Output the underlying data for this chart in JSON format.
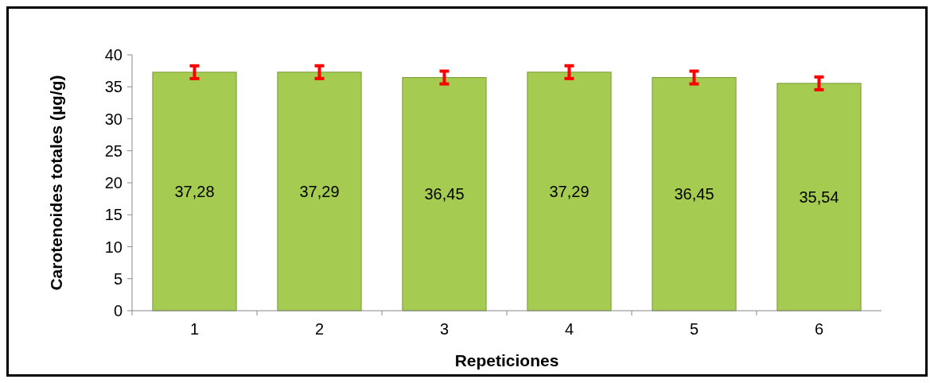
{
  "chart_data": {
    "type": "bar",
    "xlabel": "Repeticiones",
    "ylabel": "Carotenoides totales (µg/g)",
    "categories": [
      "1",
      "2",
      "3",
      "4",
      "5",
      "6"
    ],
    "values": [
      37.28,
      37.29,
      36.45,
      37.29,
      36.45,
      35.54
    ],
    "value_labels": [
      "37,28",
      "37,29",
      "36,45",
      "37,29",
      "36,45",
      "35,54"
    ],
    "errors": [
      1,
      1,
      1,
      1,
      1,
      1
    ],
    "color": "#a5cc50",
    "ylim": [
      0,
      40
    ],
    "yticks": [
      0,
      5,
      10,
      15,
      20,
      25,
      30,
      35,
      40
    ],
    "grid": false
  }
}
